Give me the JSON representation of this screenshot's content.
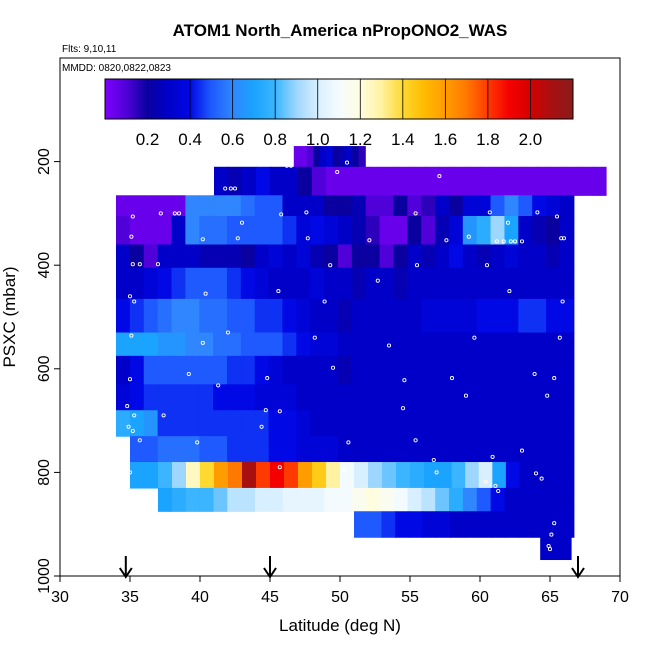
{
  "chart_data": {
    "type": "heatmap",
    "title": "ATOM1 North_America nPropONO2_WAS",
    "annotations": [
      "Flts: 9,10,11",
      "MMDD: 0820,0822,0823"
    ],
    "xlabel": "Latitude (deg N)",
    "ylabel": "PSXC (mbar)",
    "xlim": [
      30,
      70
    ],
    "ylim": [
      1000,
      0
    ],
    "xticks": [
      30,
      35,
      40,
      45,
      50,
      55,
      60,
      65,
      70
    ],
    "yticks": [
      200,
      400,
      600,
      800,
      1000
    ],
    "colorbar": {
      "ticks": [
        "0.2",
        "0.4",
        "0.6",
        "0.8",
        "1.0",
        "1.2",
        "1.4",
        "1.6",
        "1.8",
        "2.0"
      ],
      "range": [
        0,
        2.2
      ],
      "stops": [
        [
          0.0,
          "#7f00ff"
        ],
        [
          0.1,
          "#5000d8"
        ],
        [
          0.2,
          "#0a00a0"
        ],
        [
          0.3,
          "#0000c8"
        ],
        [
          0.4,
          "#0008e6"
        ],
        [
          0.5,
          "#1e5aff"
        ],
        [
          0.6,
          "#2f86ff"
        ],
        [
          0.7,
          "#1aa3ff"
        ],
        [
          0.8,
          "#3bb5ff"
        ],
        [
          0.9,
          "#9dd6ff"
        ],
        [
          1.0,
          "#d8efff"
        ],
        [
          1.1,
          "#f4fbff"
        ],
        [
          1.2,
          "#fffde0"
        ],
        [
          1.3,
          "#fff2a0"
        ],
        [
          1.4,
          "#ffd830"
        ],
        [
          1.5,
          "#ffbb00"
        ],
        [
          1.6,
          "#ff9c00"
        ],
        [
          1.7,
          "#ff7800"
        ],
        [
          1.8,
          "#ff3a00"
        ],
        [
          1.9,
          "#f50000"
        ],
        [
          2.0,
          "#d40000"
        ],
        [
          2.1,
          "#a81010"
        ],
        [
          2.2,
          "#8a1c1c"
        ]
      ]
    },
    "flight_markers_lat": [
      34.7,
      45.0,
      67.0
    ],
    "grid": false,
    "rows": [
      {
        "p": [
          170,
          210
        ],
        "segments": [
          {
            "lat": [
              46.7,
              51.8
            ],
            "values": [
              0.05,
              0.05,
              0.1,
              0.2,
              0.3,
              0.35,
              0.2,
              0.25,
              0.3,
              0.2,
              0.15
            ]
          }
        ]
      },
      {
        "p": [
          210,
          265
        ],
        "segments": [
          {
            "lat": [
              41.0,
              69.0
            ],
            "values": [
              0.3,
              0.25,
              0.3,
              0.4,
              0.3,
              0.3,
              0.2,
              0.1,
              0.05,
              0.05,
              0.05,
              0.05,
              0.05,
              0.05,
              0.05,
              0.05,
              0.05,
              0.05,
              0.05,
              0.05,
              0.05,
              0.05,
              0.05,
              0.05,
              0.05,
              0.05,
              0.05,
              0.05
            ]
          }
        ]
      },
      {
        "p": [
          265,
          305
        ],
        "segments": [
          {
            "lat": [
              34.0,
              66.7
            ],
            "values": [
              0.05,
              0.05,
              0.05,
              0.05,
              0.05,
              0.6,
              0.6,
              0.6,
              0.6,
              0.55,
              0.5,
              0.5,
              0.3,
              0.3,
              0.3,
              0.2,
              0.2,
              0.25,
              0.1,
              0.1,
              0.2,
              0.1,
              0.15,
              0.3,
              0.2,
              0.35,
              0.35,
              0.5,
              0.6,
              0.5,
              0.4,
              0.35,
              0.3
            ]
          }
        ]
      },
      {
        "p": [
          305,
          360
        ],
        "segments": [
          {
            "lat": [
              34.0,
              66.7
            ],
            "values": [
              0.1,
              0.05,
              0.05,
              0.05,
              0.3,
              0.6,
              0.55,
              0.55,
              0.5,
              0.5,
              0.5,
              0.5,
              0.45,
              0.35,
              0.4,
              0.35,
              0.3,
              0.25,
              0.15,
              0.05,
              0.05,
              0.2,
              0.1,
              0.25,
              0.35,
              0.65,
              0.75,
              0.9,
              0.7,
              0.3,
              0.25,
              0.2,
              0.3
            ]
          }
        ]
      },
      {
        "p": [
          360,
          405
        ],
        "segments": [
          {
            "lat": [
              34.0,
              66.7
            ],
            "values": [
              0.3,
              0.2,
              0.1,
              0.3,
              0.3,
              0.3,
              0.25,
              0.25,
              0.25,
              0.2,
              0.3,
              0.35,
              0.3,
              0.35,
              0.25,
              0.2,
              0.1,
              0.2,
              0.2,
              0.1,
              0.2,
              0.3,
              0.25,
              0.3,
              0.4,
              0.3,
              0.25,
              0.3,
              0.35,
              0.3,
              0.3,
              0.25,
              0.3
            ]
          }
        ]
      },
      {
        "p": [
          405,
          465
        ],
        "segments": [
          {
            "lat": [
              34.0,
              66.7
            ],
            "values": [
              0.3,
              0.3,
              0.35,
              0.4,
              0.45,
              0.5,
              0.5,
              0.5,
              0.45,
              0.4,
              0.35,
              0.3,
              0.3,
              0.3,
              0.35,
              0.3,
              0.3,
              0.25,
              0.3,
              0.3,
              0.25,
              0.3,
              0.3,
              0.3,
              0.3,
              0.3,
              0.3,
              0.3,
              0.3,
              0.3,
              0.3,
              0.3,
              0.3
            ]
          }
        ]
      },
      {
        "p": [
          465,
          530
        ],
        "segments": [
          {
            "lat": [
              34.0,
              66.7
            ],
            "values": [
              0.4,
              0.45,
              0.5,
              0.55,
              0.6,
              0.6,
              0.55,
              0.55,
              0.5,
              0.5,
              0.45,
              0.45,
              0.4,
              0.35,
              0.3,
              0.3,
              0.25,
              0.3,
              0.3,
              0.3,
              0.3,
              0.3,
              0.35,
              0.35,
              0.35,
              0.35,
              0.4,
              0.4,
              0.4,
              0.45,
              0.45,
              0.4,
              0.4
            ]
          }
        ]
      },
      {
        "p": [
          530,
          575
        ],
        "segments": [
          {
            "lat": [
              34.0,
              66.7
            ],
            "values": [
              0.7,
              0.7,
              0.7,
              0.65,
              0.65,
              0.6,
              0.6,
              0.55,
              0.55,
              0.5,
              0.5,
              0.5,
              0.45,
              0.4,
              0.35,
              0.35,
              0.3,
              0.3,
              0.3,
              0.3,
              0.3,
              0.3,
              0.3,
              0.3,
              0.3,
              0.3,
              0.3,
              0.3,
              0.3,
              0.3,
              0.3,
              0.3,
              0.3
            ]
          }
        ]
      },
      {
        "p": [
          575,
          630
        ],
        "segments": [
          {
            "lat": [
              34.0,
              66.7
            ],
            "values": [
              0.3,
              0.4,
              0.5,
              0.5,
              0.5,
              0.5,
              0.5,
              0.5,
              0.45,
              0.45,
              0.4,
              0.35,
              0.3,
              0.3,
              0.3,
              0.3,
              0.25,
              0.3,
              0.3,
              0.3,
              0.3,
              0.3,
              0.3,
              0.3,
              0.3,
              0.3,
              0.3,
              0.3,
              0.3,
              0.3,
              0.3,
              0.3,
              0.3
            ]
          }
        ]
      },
      {
        "p": [
          630,
          680
        ],
        "segments": [
          {
            "lat": [
              34.0,
              66.7
            ],
            "values": [
              0.35,
              0.4,
              0.45,
              0.45,
              0.45,
              0.45,
              0.45,
              0.4,
              0.4,
              0.4,
              0.35,
              0.35,
              0.35,
              0.3,
              0.3,
              0.3,
              0.3,
              0.3,
              0.3,
              0.3,
              0.3,
              0.3,
              0.3,
              0.3,
              0.3,
              0.3,
              0.3,
              0.3,
              0.3,
              0.3,
              0.3,
              0.3,
              0.3
            ]
          }
        ]
      },
      {
        "p": [
          680,
          730
        ],
        "segments": [
          {
            "lat": [
              34.0,
              66.7
            ],
            "values": [
              0.75,
              0.7,
              0.65,
              0.45,
              0.45,
              0.45,
              0.45,
              0.45,
              0.45,
              0.45,
              0.45,
              0.4,
              0.4,
              0.35,
              0.3,
              0.3,
              0.3,
              0.3,
              0.3,
              0.3,
              0.3,
              0.3,
              0.3,
              0.3,
              0.3,
              0.3,
              0.3,
              0.3,
              0.3,
              0.3,
              0.3,
              0.3,
              0.3
            ]
          }
        ]
      },
      {
        "p": [
          730,
          780
        ],
        "segments": [
          {
            "lat": [
              35.0,
              66.7
            ],
            "values": [
              0.5,
              0.5,
              0.55,
              0.55,
              0.55,
              0.5,
              0.5,
              0.45,
              0.45,
              0.45,
              0.4,
              0.4,
              0.35,
              0.35,
              0.35,
              0.3,
              0.3,
              0.3,
              0.3,
              0.3,
              0.3,
              0.3,
              0.3,
              0.3,
              0.3,
              0.3,
              0.3,
              0.3,
              0.3,
              0.3,
              0.3,
              0.3
            ]
          }
        ]
      },
      {
        "p": [
          780,
          830
        ],
        "segments": [
          {
            "lat": [
              35.0,
              57.0
            ],
            "values": [
              0.7,
              0.7,
              0.8,
              0.9,
              1.25,
              1.4,
              1.6,
              1.7,
              2.1,
              1.8,
              1.9,
              1.8,
              1.6,
              1.45,
              1.3,
              1.1,
              1.0,
              0.9,
              0.85,
              0.8,
              0.75,
              0.7
            ]
          },
          {
            "lat": [
              57.0,
              66.7
            ],
            "values": [
              0.7,
              0.8,
              0.9,
              1.0,
              0.7,
              0.4,
              0.3,
              0.3,
              0.3,
              0.3
            ]
          }
        ]
      },
      {
        "p": [
          830,
          875
        ],
        "segments": [
          {
            "lat": [
              37.0,
              66.7
            ],
            "values": [
              0.7,
              0.75,
              0.8,
              0.8,
              0.85,
              0.95,
              0.95,
              1.0,
              1.0,
              1.05,
              1.05,
              1.05,
              1.1,
              1.1,
              1.15,
              1.2,
              1.15,
              1.1,
              1.0,
              0.95,
              0.85,
              0.75,
              0.6,
              0.5,
              0.4,
              0.3,
              0.3,
              0.3,
              0.3,
              0.3
            ]
          }
        ]
      },
      {
        "p": [
          875,
          925
        ],
        "segments": [
          {
            "lat": [
              51.0,
              66.7
            ],
            "values": [
              0.5,
              0.5,
              0.45,
              0.4,
              0.4,
              0.35,
              0.35,
              0.3,
              0.3,
              0.3,
              0.3,
              0.3,
              0.3,
              0.3,
              0.3,
              0.3
            ]
          }
        ]
      },
      {
        "p": [
          925,
          968
        ],
        "segments": [
          {
            "lat": [
              64.3,
              66.5
            ],
            "values": [
              0.3,
              0.3
            ]
          }
        ]
      }
    ],
    "sample_points": [
      [
        46.2,
        208
      ],
      [
        46.5,
        208
      ],
      [
        49.8,
        220
      ],
      [
        50.5,
        202
      ],
      [
        57.1,
        228
      ],
      [
        41.8,
        252
      ],
      [
        42.2,
        252
      ],
      [
        42.5,
        252
      ],
      [
        69.2,
        248
      ],
      [
        35.2,
        306
      ],
      [
        37.2,
        300
      ],
      [
        38.2,
        300
      ],
      [
        38.5,
        300
      ],
      [
        43.0,
        318
      ],
      [
        45.8,
        302
      ],
      [
        47.6,
        298
      ],
      [
        55.4,
        300
      ],
      [
        60.7,
        298
      ],
      [
        62.0,
        318
      ],
      [
        64.1,
        298
      ],
      [
        65.5,
        306
      ],
      [
        35.1,
        345
      ],
      [
        40.2,
        350
      ],
      [
        42.7,
        348
      ],
      [
        47.7,
        348
      ],
      [
        52.1,
        352
      ],
      [
        57.6,
        352
      ],
      [
        59.2,
        345
      ],
      [
        61.2,
        354
      ],
      [
        61.7,
        354
      ],
      [
        62.2,
        354
      ],
      [
        62.5,
        354
      ],
      [
        63.0,
        354
      ],
      [
        65.8,
        348
      ],
      [
        66.0,
        348
      ],
      [
        35.2,
        398
      ],
      [
        35.7,
        398
      ],
      [
        37.0,
        398
      ],
      [
        49.3,
        400
      ],
      [
        55.5,
        400
      ],
      [
        60.5,
        400
      ],
      [
        35.0,
        460
      ],
      [
        35.3,
        470
      ],
      [
        40.4,
        455
      ],
      [
        45.6,
        450
      ],
      [
        48.9,
        470
      ],
      [
        52.7,
        430
      ],
      [
        62.1,
        450
      ],
      [
        65.9,
        470
      ],
      [
        68.4,
        470
      ],
      [
        35.1,
        536
      ],
      [
        40.2,
        550
      ],
      [
        42.0,
        530
      ],
      [
        48.2,
        540
      ],
      [
        53.5,
        555
      ],
      [
        59.6,
        540
      ],
      [
        65.7,
        540
      ],
      [
        35.0,
        620
      ],
      [
        39.2,
        610
      ],
      [
        41.3,
        632
      ],
      [
        44.8,
        618
      ],
      [
        49.5,
        598
      ],
      [
        54.6,
        622
      ],
      [
        58.0,
        618
      ],
      [
        63.9,
        610
      ],
      [
        65.3,
        618
      ],
      [
        34.8,
        672
      ],
      [
        35.3,
        690
      ],
      [
        37.4,
        690
      ],
      [
        44.7,
        680
      ],
      [
        45.7,
        682
      ],
      [
        54.5,
        676
      ],
      [
        59.0,
        652
      ],
      [
        64.8,
        652
      ],
      [
        67.2,
        666
      ],
      [
        68.4,
        660
      ],
      [
        34.9,
        712
      ],
      [
        35.2,
        720
      ],
      [
        35.7,
        738
      ],
      [
        39.8,
        742
      ],
      [
        44.4,
        712
      ],
      [
        50.6,
        742
      ],
      [
        55.4,
        738
      ],
      [
        56.7,
        776
      ],
      [
        60.9,
        770
      ],
      [
        63.0,
        758
      ],
      [
        67.2,
        758
      ],
      [
        35.0,
        800
      ],
      [
        45.7,
        790
      ],
      [
        50.3,
        795
      ],
      [
        56.9,
        800
      ],
      [
        60.4,
        818
      ],
      [
        64.0,
        802
      ],
      [
        64.4,
        812
      ],
      [
        67.0,
        822
      ],
      [
        61.1,
        826
      ],
      [
        61.3,
        836
      ],
      [
        65.3,
        898
      ],
      [
        65.1,
        920
      ],
      [
        64.9,
        942
      ],
      [
        65.0,
        948
      ]
    ]
  }
}
